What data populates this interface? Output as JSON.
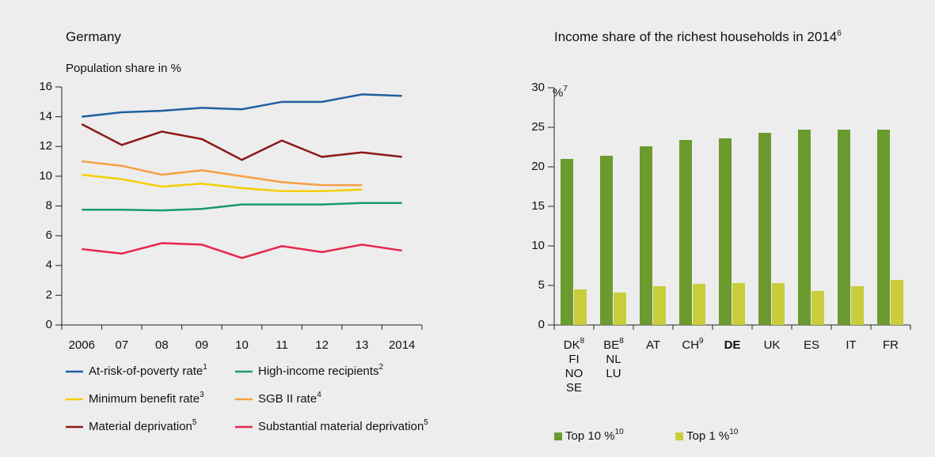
{
  "chart_data": [
    {
      "type": "line",
      "title": "Germany",
      "y_label": "Population share in %",
      "categories": [
        "2006",
        "07",
        "08",
        "09",
        "10",
        "11",
        "12",
        "13",
        "2014"
      ],
      "ylim": [
        0,
        16
      ],
      "yticks": [
        0,
        2,
        4,
        6,
        8,
        10,
        12,
        14,
        16
      ],
      "series": [
        {
          "name": "At-risk-of-poverty rate",
          "footnote": "1",
          "color": "#1f5fa0",
          "values": [
            14.0,
            14.3,
            14.4,
            14.6,
            14.5,
            15.0,
            15.0,
            15.5,
            15.4
          ]
        },
        {
          "name": "High-income recipients",
          "footnote": "2",
          "color": "#1a9a6a",
          "values": [
            7.75,
            7.75,
            7.7,
            7.8,
            8.1,
            8.1,
            8.1,
            8.2,
            8.2
          ]
        },
        {
          "name": "Minimum benefit rate",
          "footnote": "3",
          "color": "#f5cf00",
          "values": [
            10.1,
            9.8,
            9.3,
            9.5,
            9.2,
            9.0,
            9.0,
            9.1,
            null
          ]
        },
        {
          "name": "SGB II rate",
          "footnote": "4",
          "color": "#f5a043",
          "values": [
            11.0,
            10.7,
            10.1,
            10.4,
            10.0,
            9.6,
            9.4,
            9.4,
            null
          ]
        },
        {
          "name": "Material deprivation",
          "footnote": "5",
          "color": "#8b1a1a",
          "values": [
            13.5,
            12.1,
            13.0,
            12.5,
            11.1,
            12.4,
            11.3,
            11.6,
            11.3
          ]
        },
        {
          "name": "Substantial material deprivation",
          "footnote": "5",
          "color": "#e8264a",
          "values": [
            5.1,
            4.8,
            5.5,
            5.4,
            4.5,
            5.3,
            4.9,
            5.4,
            5.0
          ]
        }
      ]
    },
    {
      "type": "bar",
      "title": "Income share of the richest households in 2014",
      "title_footnote": "6",
      "y_label": "%",
      "y_label_footnote": "7",
      "categories": [
        [
          "DK",
          "FI",
          "NO",
          "SE"
        ],
        [
          "BE",
          "NL",
          "LU"
        ],
        [
          "AT"
        ],
        [
          "CH"
        ],
        [
          "DE"
        ],
        [
          "UK"
        ],
        [
          "ES"
        ],
        [
          "IT"
        ],
        [
          "FR"
        ]
      ],
      "category_footnotes": {
        "0": "8",
        "1": "8",
        "3": "9"
      },
      "highlight": 4,
      "ylim": [
        0,
        30
      ],
      "yticks": [
        0,
        5,
        10,
        15,
        20,
        25,
        30
      ],
      "series": [
        {
          "name": "Top 10 %",
          "footnote": "10",
          "color": "#6b9a2f",
          "values": [
            21.0,
            21.4,
            22.6,
            23.4,
            23.6,
            24.3,
            24.7,
            24.7,
            24.7
          ]
        },
        {
          "name": "Top 1 %",
          "footnote": "10",
          "color": "#c9cd3c",
          "values": [
            4.5,
            4.1,
            4.9,
            5.2,
            5.3,
            5.3,
            4.3,
            4.9,
            5.7
          ]
        }
      ]
    }
  ]
}
